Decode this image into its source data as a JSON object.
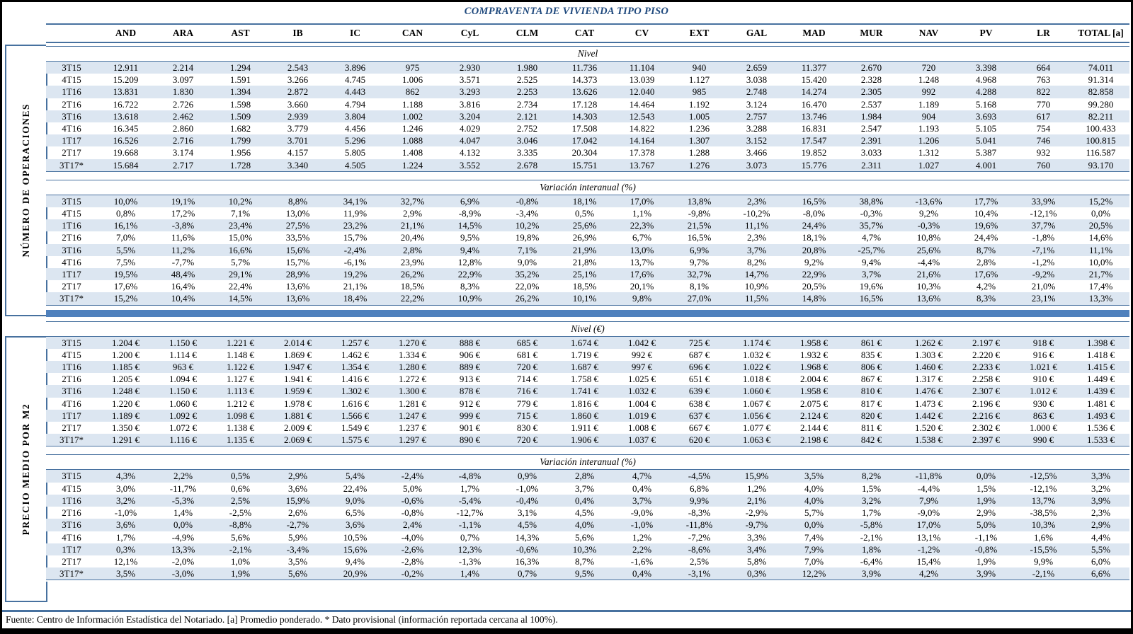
{
  "title": "COMPRAVENTA DE VIVIENDA TIPO PISO",
  "columns": [
    "AND",
    "ARA",
    "AST",
    "IB",
    "IC",
    "CAN",
    "CyL",
    "CLM",
    "CAT",
    "CV",
    "EXT",
    "GAL",
    "MAD",
    "MUR",
    "NAV",
    "PV",
    "LR",
    "TOTAL [a]"
  ],
  "quarters": [
    "3T15",
    "4T15",
    "1T16",
    "2T16",
    "3T16",
    "4T16",
    "1T17",
    "2T17",
    "3T17*"
  ],
  "blocks": [
    {
      "label": "NÚMERO DE OPERACIONES",
      "subsections": [
        {
          "title": "Nivel",
          "rows": [
            [
              "12.911",
              "2.214",
              "1.294",
              "2.543",
              "3.896",
              "975",
              "2.930",
              "1.980",
              "11.736",
              "11.104",
              "940",
              "2.659",
              "11.377",
              "2.670",
              "720",
              "3.398",
              "664",
              "74.011"
            ],
            [
              "15.209",
              "3.097",
              "1.591",
              "3.266",
              "4.745",
              "1.006",
              "3.571",
              "2.525",
              "14.373",
              "13.039",
              "1.127",
              "3.038",
              "15.420",
              "2.328",
              "1.248",
              "4.968",
              "763",
              "91.314"
            ],
            [
              "13.831",
              "1.830",
              "1.394",
              "2.872",
              "4.443",
              "862",
              "3.293",
              "2.253",
              "13.626",
              "12.040",
              "985",
              "2.748",
              "14.274",
              "2.305",
              "992",
              "4.288",
              "822",
              "82.858"
            ],
            [
              "16.722",
              "2.726",
              "1.598",
              "3.660",
              "4.794",
              "1.188",
              "3.816",
              "2.734",
              "17.128",
              "14.464",
              "1.192",
              "3.124",
              "16.470",
              "2.537",
              "1.189",
              "5.168",
              "770",
              "99.280"
            ],
            [
              "13.618",
              "2.462",
              "1.509",
              "2.939",
              "3.804",
              "1.002",
              "3.204",
              "2.121",
              "14.303",
              "12.543",
              "1.005",
              "2.757",
              "13.746",
              "1.984",
              "904",
              "3.693",
              "617",
              "82.211"
            ],
            [
              "16.345",
              "2.860",
              "1.682",
              "3.779",
              "4.456",
              "1.246",
              "4.029",
              "2.752",
              "17.508",
              "14.822",
              "1.236",
              "3.288",
              "16.831",
              "2.547",
              "1.193",
              "5.105",
              "754",
              "100.433"
            ],
            [
              "16.526",
              "2.716",
              "1.799",
              "3.701",
              "5.296",
              "1.088",
              "4.047",
              "3.046",
              "17.042",
              "14.164",
              "1.307",
              "3.152",
              "17.547",
              "2.391",
              "1.206",
              "5.041",
              "746",
              "100.815"
            ],
            [
              "19.668",
              "3.174",
              "1.956",
              "4.157",
              "5.805",
              "1.408",
              "4.132",
              "3.335",
              "20.304",
              "17.378",
              "1.288",
              "3.466",
              "19.852",
              "3.033",
              "1.312",
              "5.387",
              "932",
              "116.587"
            ],
            [
              "15.684",
              "2.717",
              "1.728",
              "3.340",
              "4.505",
              "1.224",
              "3.552",
              "2.678",
              "15.751",
              "13.767",
              "1.276",
              "3.073",
              "15.776",
              "2.311",
              "1.027",
              "4.001",
              "760",
              "93.170"
            ]
          ]
        },
        {
          "title": "Variación interanual (%)",
          "rows": [
            [
              "10,0%",
              "19,1%",
              "10,2%",
              "8,8%",
              "34,1%",
              "32,7%",
              "6,9%",
              "-0,8%",
              "18,1%",
              "17,0%",
              "13,8%",
              "2,3%",
              "16,5%",
              "38,8%",
              "-13,6%",
              "17,7%",
              "33,9%",
              "15,2%"
            ],
            [
              "0,8%",
              "17,2%",
              "7,1%",
              "13,0%",
              "11,9%",
              "2,9%",
              "-8,9%",
              "-3,4%",
              "0,5%",
              "1,1%",
              "-9,8%",
              "-10,2%",
              "-8,0%",
              "-0,3%",
              "9,2%",
              "10,4%",
              "-12,1%",
              "0,0%"
            ],
            [
              "16,1%",
              "-3,8%",
              "23,4%",
              "27,5%",
              "23,2%",
              "21,1%",
              "14,5%",
              "10,2%",
              "25,6%",
              "22,3%",
              "21,5%",
              "11,1%",
              "24,4%",
              "35,7%",
              "-0,3%",
              "19,6%",
              "37,7%",
              "20,5%"
            ],
            [
              "7,0%",
              "11,6%",
              "15,0%",
              "33,5%",
              "15,7%",
              "20,4%",
              "9,5%",
              "19,8%",
              "26,9%",
              "6,7%",
              "16,5%",
              "2,3%",
              "18,1%",
              "4,7%",
              "10,8%",
              "24,4%",
              "-1,8%",
              "14,6%"
            ],
            [
              "5,5%",
              "11,2%",
              "16,6%",
              "15,6%",
              "-2,4%",
              "2,8%",
              "9,4%",
              "7,1%",
              "21,9%",
              "13,0%",
              "6,9%",
              "3,7%",
              "20,8%",
              "-25,7%",
              "25,6%",
              "8,7%",
              "-7,1%",
              "11,1%"
            ],
            [
              "7,5%",
              "-7,7%",
              "5,7%",
              "15,7%",
              "-6,1%",
              "23,9%",
              "12,8%",
              "9,0%",
              "21,8%",
              "13,7%",
              "9,7%",
              "8,2%",
              "9,2%",
              "9,4%",
              "-4,4%",
              "2,8%",
              "-1,2%",
              "10,0%"
            ],
            [
              "19,5%",
              "48,4%",
              "29,1%",
              "28,9%",
              "19,2%",
              "26,2%",
              "22,9%",
              "35,2%",
              "25,1%",
              "17,6%",
              "32,7%",
              "14,7%",
              "22,9%",
              "3,7%",
              "21,6%",
              "17,6%",
              "-9,2%",
              "21,7%"
            ],
            [
              "17,6%",
              "16,4%",
              "22,4%",
              "13,6%",
              "21,1%",
              "18,5%",
              "8,3%",
              "22,0%",
              "18,5%",
              "20,1%",
              "8,1%",
              "10,9%",
              "20,5%",
              "19,6%",
              "10,3%",
              "4,2%",
              "21,0%",
              "17,4%"
            ],
            [
              "15,2%",
              "10,4%",
              "14,5%",
              "13,6%",
              "18,4%",
              "22,2%",
              "10,9%",
              "26,2%",
              "10,1%",
              "9,8%",
              "27,0%",
              "11,5%",
              "14,8%",
              "16,5%",
              "13,6%",
              "8,3%",
              "23,1%",
              "13,3%"
            ]
          ]
        }
      ]
    },
    {
      "label": "PRECIO MEDIO POR M2",
      "subsections": [
        {
          "title": "Nivel (€)",
          "rows": [
            [
              "1.204 €",
              "1.150 €",
              "1.221 €",
              "2.014 €",
              "1.257 €",
              "1.270 €",
              "888 €",
              "685 €",
              "1.674 €",
              "1.042 €",
              "725 €",
              "1.174 €",
              "1.958 €",
              "861 €",
              "1.262 €",
              "2.197 €",
              "918 €",
              "1.398 €"
            ],
            [
              "1.200 €",
              "1.114 €",
              "1.148 €",
              "1.869 €",
              "1.462 €",
              "1.334 €",
              "906 €",
              "681 €",
              "1.719 €",
              "992 €",
              "687 €",
              "1.032 €",
              "1.932 €",
              "835 €",
              "1.303 €",
              "2.220 €",
              "916 €",
              "1.418 €"
            ],
            [
              "1.185 €",
              "963 €",
              "1.122 €",
              "1.947 €",
              "1.354 €",
              "1.280 €",
              "889 €",
              "720 €",
              "1.687 €",
              "997 €",
              "696 €",
              "1.022 €",
              "1.968 €",
              "806 €",
              "1.460 €",
              "2.233 €",
              "1.021 €",
              "1.415 €"
            ],
            [
              "1.205 €",
              "1.094 €",
              "1.127 €",
              "1.941 €",
              "1.416 €",
              "1.272 €",
              "913 €",
              "714 €",
              "1.758 €",
              "1.025 €",
              "651 €",
              "1.018 €",
              "2.004 €",
              "867 €",
              "1.317 €",
              "2.258 €",
              "910 €",
              "1.449 €"
            ],
            [
              "1.248 €",
              "1.150 €",
              "1.113 €",
              "1.959 €",
              "1.302 €",
              "1.300 €",
              "878 €",
              "716 €",
              "1.741 €",
              "1.032 €",
              "639 €",
              "1.060 €",
              "1.958 €",
              "810 €",
              "1.476 €",
              "2.307 €",
              "1.012 €",
              "1.439 €"
            ],
            [
              "1.220 €",
              "1.060 €",
              "1.212 €",
              "1.978 €",
              "1.616 €",
              "1.281 €",
              "912 €",
              "779 €",
              "1.816 €",
              "1.004 €",
              "638 €",
              "1.067 €",
              "2.075 €",
              "817 €",
              "1.473 €",
              "2.196 €",
              "930 €",
              "1.481 €"
            ],
            [
              "1.189 €",
              "1.092 €",
              "1.098 €",
              "1.881 €",
              "1.566 €",
              "1.247 €",
              "999 €",
              "715 €",
              "1.860 €",
              "1.019 €",
              "637 €",
              "1.056 €",
              "2.124 €",
              "820 €",
              "1.442 €",
              "2.216 €",
              "863 €",
              "1.493 €"
            ],
            [
              "1.350 €",
              "1.072 €",
              "1.138 €",
              "2.009 €",
              "1.549 €",
              "1.237 €",
              "901 €",
              "830 €",
              "1.911 €",
              "1.008 €",
              "667 €",
              "1.077 €",
              "2.144 €",
              "811 €",
              "1.520 €",
              "2.302 €",
              "1.000 €",
              "1.536 €"
            ],
            [
              "1.291 €",
              "1.116 €",
              "1.135 €",
              "2.069 €",
              "1.575 €",
              "1.297 €",
              "890 €",
              "720 €",
              "1.906 €",
              "1.037 €",
              "620 €",
              "1.063 €",
              "2.198 €",
              "842 €",
              "1.538 €",
              "2.397 €",
              "990 €",
              "1.533 €"
            ]
          ]
        },
        {
          "title": "Variación interanual (%)",
          "rows": [
            [
              "4,3%",
              "2,2%",
              "0,5%",
              "2,9%",
              "5,4%",
              "-2,4%",
              "-4,8%",
              "0,9%",
              "2,8%",
              "4,7%",
              "-4,5%",
              "15,9%",
              "3,5%",
              "8,2%",
              "-11,8%",
              "0,0%",
              "-12,5%",
              "3,3%"
            ],
            [
              "3,0%",
              "-11,7%",
              "0,6%",
              "3,6%",
              "22,4%",
              "5,0%",
              "1,7%",
              "-1,0%",
              "3,7%",
              "0,4%",
              "6,8%",
              "1,2%",
              "4,0%",
              "1,5%",
              "-4,4%",
              "1,5%",
              "-12,1%",
              "3,2%"
            ],
            [
              "3,2%",
              "-5,3%",
              "2,5%",
              "15,9%",
              "9,0%",
              "-0,6%",
              "-5,4%",
              "-0,4%",
              "0,4%",
              "3,7%",
              "9,9%",
              "2,1%",
              "4,0%",
              "3,2%",
              "7,9%",
              "1,9%",
              "13,7%",
              "3,9%"
            ],
            [
              "-1,0%",
              "1,4%",
              "-2,5%",
              "2,6%",
              "6,5%",
              "-0,8%",
              "-12,7%",
              "3,1%",
              "4,5%",
              "-9,0%",
              "-8,3%",
              "-2,9%",
              "5,7%",
              "1,7%",
              "-9,0%",
              "2,9%",
              "-38,5%",
              "2,3%"
            ],
            [
              "3,6%",
              "0,0%",
              "-8,8%",
              "-2,7%",
              "3,6%",
              "2,4%",
              "-1,1%",
              "4,5%",
              "4,0%",
              "-1,0%",
              "-11,8%",
              "-9,7%",
              "0,0%",
              "-5,8%",
              "17,0%",
              "5,0%",
              "10,3%",
              "2,9%"
            ],
            [
              "1,7%",
              "-4,9%",
              "5,6%",
              "5,9%",
              "10,5%",
              "-4,0%",
              "0,7%",
              "14,3%",
              "5,6%",
              "1,2%",
              "-7,2%",
              "3,3%",
              "7,4%",
              "-2,1%",
              "13,1%",
              "-1,1%",
              "1,6%",
              "4,4%"
            ],
            [
              "0,3%",
              "13,3%",
              "-2,1%",
              "-3,4%",
              "15,6%",
              "-2,6%",
              "12,3%",
              "-0,6%",
              "10,3%",
              "2,2%",
              "-8,6%",
              "3,4%",
              "7,9%",
              "1,8%",
              "-1,2%",
              "-0,8%",
              "-15,5%",
              "5,5%"
            ],
            [
              "12,1%",
              "-2,0%",
              "1,0%",
              "3,5%",
              "9,4%",
              "-2,8%",
              "-1,3%",
              "16,3%",
              "8,7%",
              "-1,6%",
              "2,5%",
              "5,8%",
              "7,0%",
              "-6,4%",
              "15,4%",
              "1,9%",
              "9,9%",
              "6,0%"
            ],
            [
              "3,5%",
              "-3,0%",
              "1,9%",
              "5,6%",
              "20,9%",
              "-0,2%",
              "1,4%",
              "0,7%",
              "9,5%",
              "0,4%",
              "-3,1%",
              "0,3%",
              "12,2%",
              "3,9%",
              "4,2%",
              "3,9%",
              "-2,1%",
              "6,6%"
            ]
          ]
        }
      ]
    }
  ],
  "footer": "Fuente: Centro de Información Estadística del Notariado. [a] Promedio ponderado. * Dato provisional (información reportada cercana al 100%).",
  "colors": {
    "accent_bar": "#4f81bd",
    "line": "#47719f",
    "stripe": "#dce6f1",
    "title_text": "#1f497d",
    "text": "#000000"
  }
}
